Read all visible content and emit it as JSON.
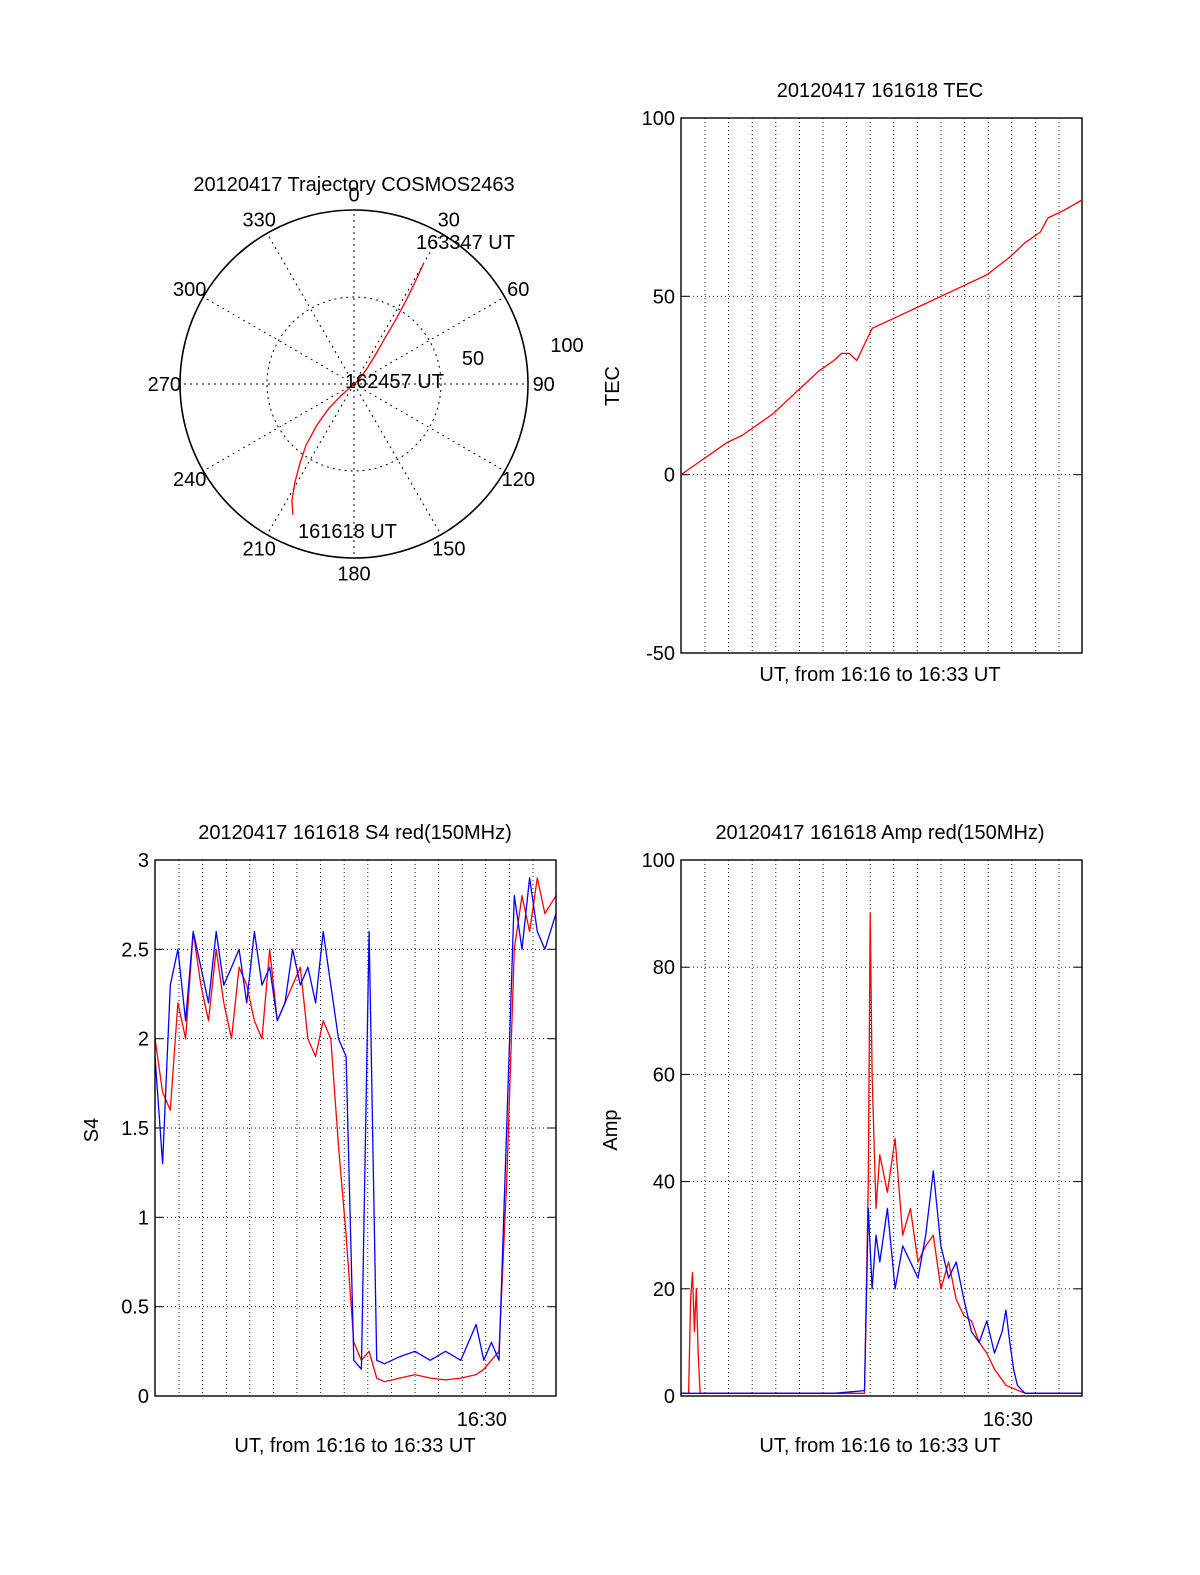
{
  "colors": {
    "red": "#ff0000",
    "blue": "#0000ff",
    "axis": "#000000",
    "grid": "#000000",
    "background": "#ffffff"
  },
  "chart_data": [
    {
      "id": "trajectory",
      "type": "polar",
      "title": "20120417 Trajectory COSMOS2463",
      "azimuth_labels": [
        "0",
        "30",
        "60",
        "90",
        "120",
        "150",
        "180",
        "210",
        "240",
        "270",
        "300",
        "330"
      ],
      "radial_labels": [
        "50",
        "100"
      ],
      "radial_max": 100,
      "grid": true,
      "series": [
        {
          "color": "red",
          "points": [
            [
              205,
              83
            ],
            [
              208,
              76
            ],
            [
              211,
              66
            ],
            [
              214,
              56
            ],
            [
              218,
              45
            ],
            [
              222,
              32
            ],
            [
              226,
              20
            ],
            [
              228,
              10
            ],
            [
              230,
              2
            ],
            [
              50,
              3
            ],
            [
              40,
              12
            ],
            [
              36,
              22
            ],
            [
              34,
              32
            ],
            [
              33,
              44
            ],
            [
              32,
              56
            ],
            [
              31,
              68
            ],
            [
              30,
              80
            ]
          ]
        }
      ],
      "annotations": [
        {
          "text": "163347 UT",
          "at": [
            30,
            80
          ]
        },
        {
          "text": "162457 UT",
          "at": [
            230,
            2
          ]
        },
        {
          "text": "161618 UT",
          "at": [
            205,
            83
          ]
        }
      ]
    },
    {
      "id": "tec",
      "type": "line",
      "title": "20120417 161618 TEC",
      "xlabel": "UT, from 16:16 to 16:33 UT",
      "ylabel": "TEC",
      "xlim": [
        0,
        1049
      ],
      "ylim": [
        -50,
        100
      ],
      "yticks": [
        -50,
        0,
        50,
        100
      ],
      "xtick_labels": [],
      "grid": true,
      "series": [
        {
          "color": "red",
          "x": [
            0,
            40,
            80,
            120,
            160,
            200,
            240,
            280,
            320,
            360,
            400,
            420,
            440,
            450,
            460,
            500,
            560,
            640,
            720,
            800,
            860,
            900,
            940,
            960,
            1000,
            1049
          ],
          "y": [
            0,
            3,
            6,
            9,
            11,
            14,
            17,
            21,
            25,
            29,
            32,
            34,
            34,
            33,
            32,
            41,
            44,
            48,
            52,
            56,
            61,
            65,
            68,
            72,
            74,
            77
          ]
        }
      ]
    },
    {
      "id": "s4",
      "type": "line",
      "title": "20120417 161618 S4 red(150MHz)",
      "xlabel": "UT, from 16:16 to 16:33 UT",
      "ylabel": "S4",
      "xlim": [
        0,
        1049
      ],
      "ylim": [
        0,
        3
      ],
      "yticks": [
        "0",
        "0.5",
        "1",
        "1.5",
        "2",
        "2.5",
        "3"
      ],
      "xtick_labels": [
        {
          "label": "16:30",
          "x": 855
        }
      ],
      "grid": true,
      "series": [
        {
          "color": "red",
          "x": [
            0,
            20,
            40,
            60,
            80,
            100,
            120,
            140,
            160,
            180,
            200,
            220,
            240,
            260,
            280,
            300,
            320,
            340,
            360,
            380,
            400,
            420,
            440,
            460,
            480,
            500,
            520,
            540,
            560,
            580,
            600,
            640,
            680,
            720,
            760,
            800,
            840,
            860,
            880,
            900,
            920,
            940,
            960,
            980,
            1000,
            1020,
            1049
          ],
          "y": [
            2.0,
            1.7,
            1.6,
            2.2,
            2.0,
            2.6,
            2.3,
            2.1,
            2.5,
            2.2,
            2.0,
            2.4,
            2.3,
            2.1,
            2.0,
            2.5,
            2.1,
            2.2,
            2.3,
            2.4,
            2.0,
            1.9,
            2.1,
            2.0,
            1.4,
            0.9,
            0.3,
            0.2,
            0.25,
            0.1,
            0.08,
            0.1,
            0.12,
            0.1,
            0.09,
            0.1,
            0.12,
            0.15,
            0.2,
            0.25,
            1.2,
            2.5,
            2.8,
            2.6,
            2.9,
            2.7,
            2.8
          ]
        },
        {
          "color": "blue",
          "x": [
            0,
            20,
            40,
            60,
            80,
            100,
            120,
            140,
            160,
            180,
            200,
            220,
            240,
            260,
            280,
            300,
            320,
            340,
            360,
            380,
            400,
            420,
            440,
            460,
            480,
            500,
            520,
            540,
            560,
            580,
            600,
            640,
            680,
            720,
            760,
            800,
            840,
            860,
            880,
            900,
            920,
            940,
            960,
            980,
            1000,
            1020,
            1049
          ],
          "y": [
            1.9,
            1.3,
            2.3,
            2.5,
            2.1,
            2.6,
            2.4,
            2.2,
            2.6,
            2.3,
            2.4,
            2.5,
            2.2,
            2.6,
            2.3,
            2.4,
            2.1,
            2.2,
            2.5,
            2.3,
            2.4,
            2.2,
            2.6,
            2.3,
            2.0,
            1.9,
            0.2,
            0.15,
            2.6,
            0.2,
            0.18,
            0.22,
            0.25,
            0.2,
            0.25,
            0.2,
            0.4,
            0.2,
            0.3,
            0.2,
            1.5,
            2.8,
            2.5,
            2.9,
            2.6,
            2.5,
            2.7
          ]
        }
      ]
    },
    {
      "id": "amp",
      "type": "line",
      "title": "20120417 161618 Amp red(150MHz)",
      "xlabel": "UT, from 16:16 to 16:33 UT",
      "ylabel": "Amp",
      "xlim": [
        0,
        1049
      ],
      "ylim": [
        0,
        100
      ],
      "yticks": [
        "0",
        "20",
        "40",
        "60",
        "80",
        "100"
      ],
      "xtick_labels": [
        {
          "label": "16:30",
          "x": 855
        }
      ],
      "grid": true,
      "series": [
        {
          "color": "red",
          "x": [
            0,
            10,
            20,
            25,
            30,
            35,
            40,
            45,
            50,
            60,
            100,
            200,
            300,
            400,
            480,
            490,
            495,
            500,
            510,
            520,
            540,
            560,
            580,
            600,
            620,
            640,
            660,
            680,
            700,
            720,
            740,
            760,
            780,
            800,
            820,
            850,
            900,
            950,
            1000,
            1049
          ],
          "y": [
            0.5,
            0.5,
            0.5,
            18,
            23,
            12,
            20,
            8,
            0.5,
            0.5,
            0.5,
            0.5,
            0.5,
            0.5,
            0.5,
            40,
            90,
            60,
            35,
            45,
            38,
            48,
            30,
            35,
            25,
            28,
            30,
            20,
            25,
            18,
            15,
            14,
            10,
            8,
            5,
            2,
            0.5,
            0.5,
            0.5,
            0.5
          ]
        },
        {
          "color": "blue",
          "x": [
            0,
            100,
            200,
            300,
            400,
            480,
            490,
            500,
            510,
            520,
            540,
            560,
            580,
            600,
            620,
            640,
            660,
            680,
            700,
            720,
            740,
            760,
            780,
            800,
            820,
            840,
            850,
            860,
            870,
            880,
            900,
            950,
            1000,
            1049
          ],
          "y": [
            0.5,
            0.5,
            0.5,
            0.5,
            0.5,
            1,
            35,
            20,
            30,
            25,
            35,
            20,
            28,
            25,
            22,
            30,
            42,
            28,
            22,
            25,
            18,
            12,
            10,
            14,
            8,
            12,
            16,
            10,
            5,
            2,
            0.5,
            0.5,
            0.5,
            0.5
          ]
        }
      ]
    }
  ]
}
